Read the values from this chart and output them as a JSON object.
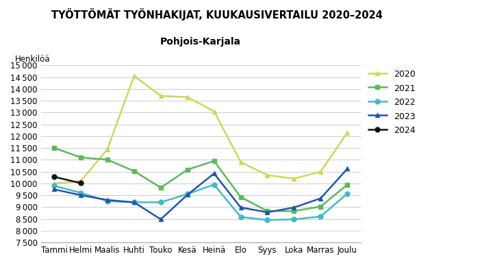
{
  "title": "TYÖTTÖMÄT TYÖNHAKIJAT, KUUKAUSIVERTAILU 2020–2024",
  "subtitle": "Pohjois-Karjala",
  "ylabel": "Henkilöä",
  "months": [
    "Tammi",
    "Helmi",
    "Maalis",
    "Huhti",
    "Touko",
    "Kesä",
    "Heinä",
    "Elo",
    "Syys",
    "Loka",
    "Marras",
    "Joulu"
  ],
  "series": {
    "2020": [
      10000,
      10100,
      11450,
      14550,
      13700,
      13650,
      13050,
      10900,
      10350,
      10200,
      10500,
      12150
    ],
    "2021": [
      11500,
      11100,
      11000,
      10520,
      9820,
      10580,
      10950,
      9420,
      8830,
      8830,
      9020,
      9950
    ],
    "2022": [
      9900,
      9600,
      9250,
      9200,
      9200,
      9550,
      9950,
      8580,
      8450,
      8480,
      8600,
      9570
    ],
    "2023": [
      9750,
      9500,
      9300,
      9200,
      8480,
      9520,
      10420,
      8980,
      8780,
      8980,
      9370,
      10620
    ],
    "2024": [
      10280,
      10010,
      null,
      null,
      null,
      null,
      null,
      null,
      null,
      null,
      null,
      null
    ]
  },
  "colors": {
    "2020": "#cdd858",
    "2021": "#5cb85c",
    "2022": "#45b8c8",
    "2023": "#2255aa",
    "2024": "#111111"
  },
  "markers": {
    "2020": "^",
    "2021": "s",
    "2022": "o",
    "2023": "^",
    "2024": "o"
  },
  "ylim": [
    7500,
    15000
  ],
  "yticks": [
    7500,
    8000,
    8500,
    9000,
    9500,
    10000,
    10500,
    11000,
    11500,
    12000,
    12500,
    13000,
    13500,
    14000,
    14500,
    15000
  ]
}
